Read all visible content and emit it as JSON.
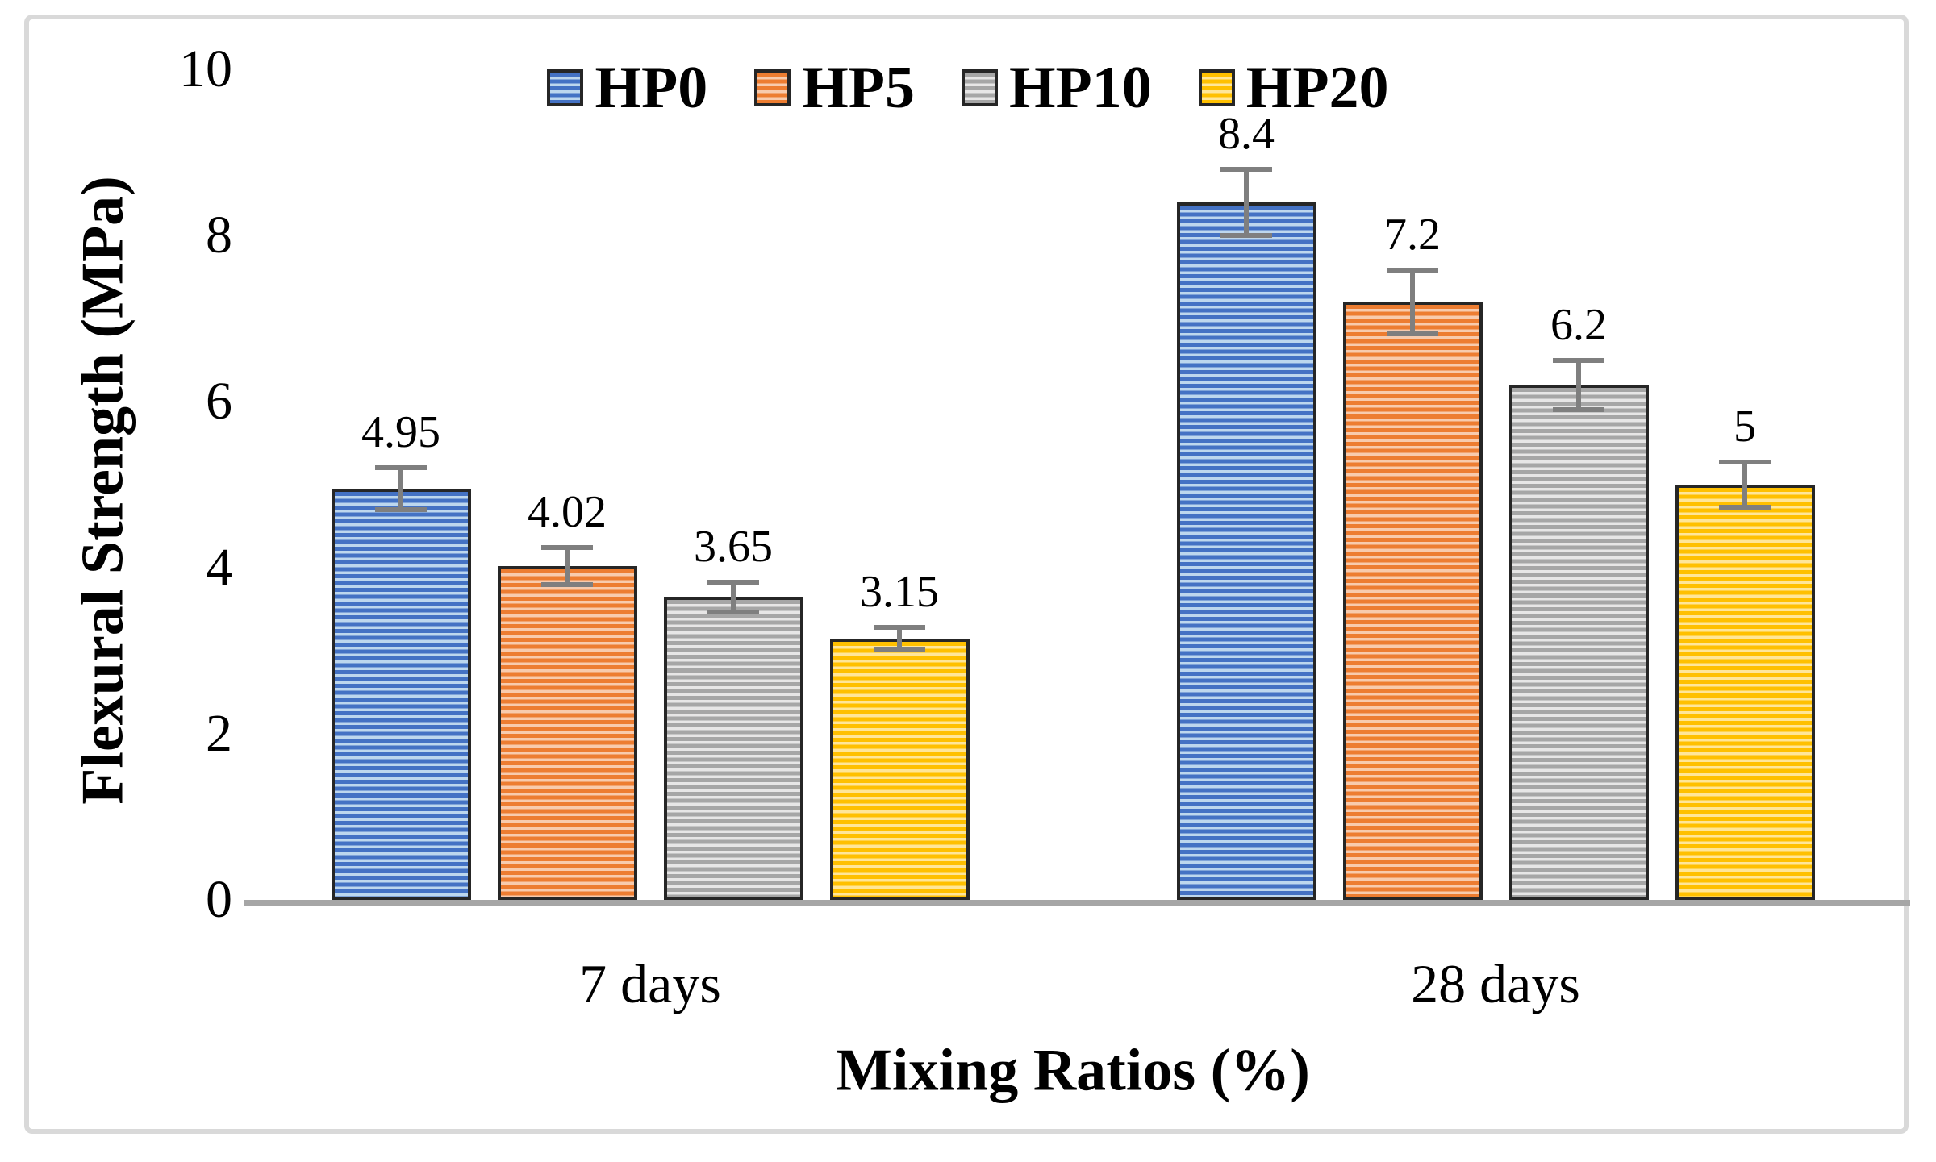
{
  "figure": {
    "background": "#ffffff",
    "frame_border_color": "#d9d9d9"
  },
  "chart_data": {
    "type": "bar",
    "title": "",
    "xlabel": "Mixing Ratios (%)",
    "ylabel": "Flexural Strength (MPa)",
    "categories": [
      "7 days",
      "28 days"
    ],
    "series": [
      {
        "name": "HP0",
        "color": "#4472C4",
        "stripe": "#BDD7EE",
        "values": [
          4.95,
          8.4
        ],
        "errors": [
          0.25,
          0.4
        ],
        "labels": [
          "4.95",
          "8.4"
        ]
      },
      {
        "name": "HP5",
        "color": "#ED7D31",
        "stripe": "#F8CBAD",
        "values": [
          4.02,
          7.2
        ],
        "errors": [
          0.22,
          0.38
        ],
        "labels": [
          "4.02",
          "7.2"
        ]
      },
      {
        "name": "HP10",
        "color": "#A6A6A6",
        "stripe": "#E7E6E6",
        "values": [
          3.65,
          6.2
        ],
        "errors": [
          0.18,
          0.3
        ],
        "labels": [
          "3.65",
          "6.2"
        ]
      },
      {
        "name": "HP20",
        "color": "#FFC000",
        "stripe": "#FFE699",
        "values": [
          3.15,
          5.0
        ],
        "errors": [
          0.13,
          0.27
        ],
        "labels": [
          "3.15",
          "5"
        ]
      }
    ],
    "y_ticks": [
      0,
      2,
      4,
      6,
      8,
      10
    ],
    "ylim": [
      0,
      10
    ],
    "legend_position": "top",
    "grid": false,
    "pattern": "horizontal-stripes",
    "error_bar_color": "#7f7f7f",
    "axis_line_color": "#a6a6a6",
    "bar_outline_color": "#262626",
    "text_color": "#000000"
  }
}
